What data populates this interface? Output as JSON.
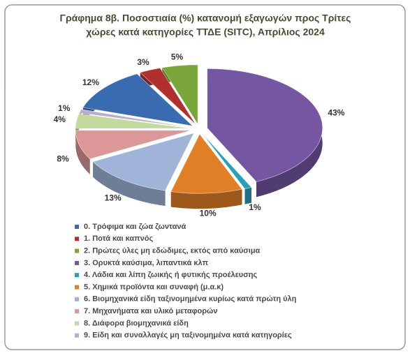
{
  "chart_data": {
    "type": "pie",
    "title": [
      "Γράφημα 8β. Ποσοστιαία (%) κατανομή εξαγωγών προς Τρίτες",
      "χώρες κατά κατηγορίες ΤΤΔΕ (SITC),  Απρίλιος 2024"
    ],
    "categories": [
      "0. Τρόφιμα και ζώα ζωντανά",
      "1. Ποτά και καπνός",
      "2. Πρώτες ύλες μη εδώδιμες, εκτός από καύσιμα",
      "3. Ορυκτά καύσιμα, λιπαντικά κλπ",
      "4. Λάδια και λίπη ζωικής ή φυτικής προέλευσης",
      "5. Χημικά προϊόντα και συναφή (μ.α.κ)",
      "6. Βιομηχανικά είδη ταξινομημένα κυρίως κατά πρώτη ύλη",
      "7. Μηχανήματα και υλικό μεταφορών",
      "8. Διάφορα βιομηχανικά είδη",
      "9. Είδη και συναλλαγές μη ταξινομημένα κατά  κατηγορίες"
    ],
    "values": [
      12,
      3,
      5,
      43,
      1,
      10,
      13,
      8,
      4,
      1
    ],
    "value_labels": [
      "12%",
      "3%",
      "5%",
      "43%",
      "1%",
      "10%",
      "13%",
      "8%",
      "4%",
      "1%"
    ],
    "colors": [
      "#3a6bb0",
      "#b03030",
      "#7aa53a",
      "#7456a3",
      "#2aa0b8",
      "#e07f28",
      "#9fb4d8",
      "#dc9898",
      "#c3d99e",
      "#b8acd0"
    ],
    "legend": "bottom"
  }
}
